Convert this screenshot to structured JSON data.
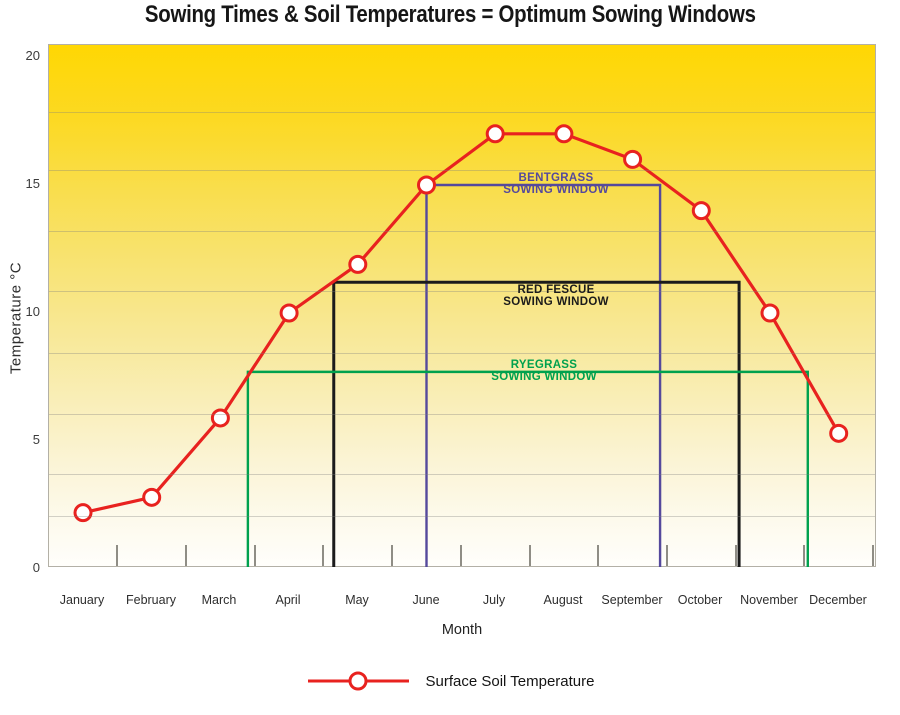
{
  "title": "Sowing Times & Soil Temperatures = Optimum Sowing Windows",
  "colors": {
    "series_red": "#e8221f",
    "bentgrass_purple": "#55499c",
    "red_fescue_black": "#1b1b1b",
    "ryegrass_green": "#00a14e",
    "plot_top_yellow": "#ffd703",
    "plot_bottom": "#fffefb",
    "axis_border_gray": "#b3b0a6"
  },
  "chart_data": {
    "type": "line",
    "title": "Sowing Times & Soil Temperatures = Optimum Sowing Windows",
    "xlabel": "Month",
    "ylabel": "Temperature °C",
    "ylim": [
      0,
      20.5
    ],
    "yticks": [
      20,
      15,
      10,
      5,
      0
    ],
    "grid": "faint horizontal gradient bands",
    "legend_position": "bottom-center",
    "categories": [
      "January",
      "February",
      "March",
      "April",
      "May",
      "June",
      "July",
      "August",
      "September",
      "October",
      "November",
      "December"
    ],
    "series": [
      {
        "name": "Surface Soil Temperature",
        "color": "#e8221f",
        "marker": "open-circle",
        "values": [
          2.2,
          2.8,
          5.9,
          10,
          11.9,
          15,
          17,
          17,
          16,
          14,
          10,
          5.3
        ]
      }
    ],
    "sowing_windows": [
      {
        "grass": "BENTGRASS",
        "label": [
          "BENTGRASS",
          "SOWING WINDOW"
        ],
        "temperature_c": 15,
        "start_month_index": 5.0,
        "end_month_index": 8.4,
        "color": "#55499c",
        "label_month_index": 6.9,
        "label_position": "straddle"
      },
      {
        "grass": "RED FESCUE",
        "label": [
          "RED FESCUE",
          "SOWING WINDOW"
        ],
        "temperature_c": 11.2,
        "start_month_index": 3.65,
        "end_month_index": 9.55,
        "color": "#1b1b1b",
        "label_month_index": 6.9,
        "label_position": "below"
      },
      {
        "grass": "RYEGRASS",
        "label": [
          "RYEGRASS",
          "SOWING WINDOW"
        ],
        "temperature_c": 7.7,
        "start_month_index": 2.4,
        "end_month_index": 10.55,
        "color": "#00a14e",
        "label_month_index": 6.73,
        "label_position": "straddle"
      }
    ],
    "legend": {
      "entries": [
        {
          "label": "Surface Soil Temperature",
          "color": "#e8221f",
          "marker": "open-circle"
        }
      ]
    }
  }
}
